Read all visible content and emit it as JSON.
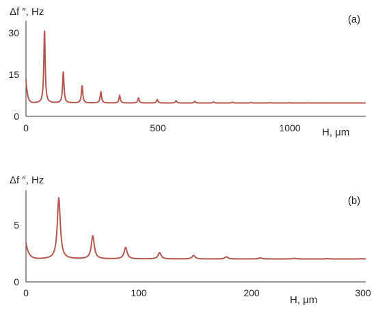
{
  "chart_data": [
    {
      "type": "line",
      "panel_label": "(a)",
      "ylabel": "Δf ″, Hz",
      "xlabel": "H, μm",
      "xlim": [
        0,
        1320
      ],
      "ylim": [
        0,
        36
      ],
      "xticks": [
        "0",
        "500",
        "1000"
      ],
      "yticks": [
        "0",
        "15",
        "30"
      ],
      "grid": false,
      "series": [
        {
          "color": "#b5564f",
          "baseline": 5,
          "decay_start": 14,
          "decay_end": 11,
          "decay_tau": 6,
          "resonances": [
            {
              "x": 72,
              "peak": 32.5
            },
            {
              "x": 145,
              "peak": 16.8
            },
            {
              "x": 218,
              "peak": 11.6
            },
            {
              "x": 291,
              "peak": 9.2
            },
            {
              "x": 364,
              "peak": 7.8
            },
            {
              "x": 437,
              "peak": 6.9
            },
            {
              "x": 510,
              "peak": 6.3
            },
            {
              "x": 583,
              "peak": 5.9
            },
            {
              "x": 656,
              "peak": 5.6
            },
            {
              "x": 729,
              "peak": 5.4
            },
            {
              "x": 802,
              "peak": 5.3
            },
            {
              "x": 875,
              "peak": 5.2
            },
            {
              "x": 948,
              "peak": 5.15
            },
            {
              "x": 1021,
              "peak": 5.1
            },
            {
              "x": 1094,
              "peak": 5.07
            },
            {
              "x": 1167,
              "peak": 5.05
            },
            {
              "x": 1240,
              "peak": 5.03
            }
          ]
        }
      ]
    },
    {
      "type": "line",
      "panel_label": "(b)",
      "ylabel": "Δf ″, Hz",
      "xlabel": "H, μm",
      "xlim": [
        0,
        300
      ],
      "ylim": [
        0,
        8
      ],
      "xticks": [
        "0",
        "100",
        "200",
        "300"
      ],
      "yticks": [
        "0",
        "5"
      ],
      "grid": false,
      "series": [
        {
          "color": "#b5564f",
          "baseline": 2.0,
          "decay_start": 3.4,
          "decay_end": 0.3,
          "decay_tau": 2.5,
          "resonances": [
            {
              "x": 29,
              "peak": 7.3
            },
            {
              "x": 59,
              "peak": 4.0
            },
            {
              "x": 88,
              "peak": 3.0
            },
            {
              "x": 118,
              "peak": 2.55
            },
            {
              "x": 148,
              "peak": 2.3
            },
            {
              "x": 177,
              "peak": 2.18
            },
            {
              "x": 207,
              "peak": 2.1
            },
            {
              "x": 237,
              "peak": 2.06
            },
            {
              "x": 266,
              "peak": 2.03
            },
            {
              "x": 296,
              "peak": 2.02
            }
          ]
        }
      ]
    }
  ]
}
